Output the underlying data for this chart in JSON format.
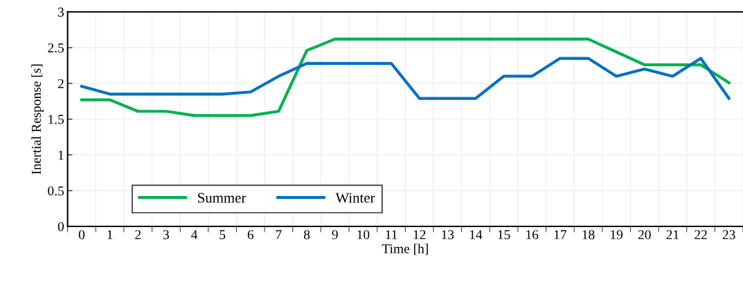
{
  "chart_data": {
    "type": "line",
    "xlabel": "Time [h]",
    "ylabel": "Inertial Response [s]",
    "categories": [
      "0",
      "1",
      "2",
      "3",
      "4",
      "5",
      "6",
      "7",
      "8",
      "9",
      "10",
      "11",
      "12",
      "13",
      "14",
      "15",
      "16",
      "17",
      "18",
      "19",
      "20",
      "21",
      "22",
      "23"
    ],
    "series": [
      {
        "name": "Summer",
        "color": "#00b050",
        "values": [
          1.77,
          1.77,
          1.61,
          1.61,
          1.55,
          1.55,
          1.55,
          1.61,
          2.46,
          2.62,
          2.62,
          2.62,
          2.62,
          2.62,
          2.62,
          2.62,
          2.62,
          2.62,
          2.62,
          2.44,
          2.26,
          2.26,
          2.26,
          2.01
        ]
      },
      {
        "name": "Winter",
        "color": "#0070c0",
        "values": [
          1.96,
          1.85,
          1.85,
          1.85,
          1.85,
          1.85,
          1.88,
          2.1,
          2.28,
          2.28,
          2.28,
          2.28,
          1.79,
          1.79,
          1.79,
          2.1,
          2.1,
          2.35,
          2.35,
          2.1,
          2.2,
          2.1,
          2.35,
          1.79
        ]
      }
    ],
    "ylim": [
      0,
      3
    ],
    "yticks": [
      0,
      0.5,
      1,
      1.5,
      2,
      2.5,
      3
    ],
    "grid": true,
    "legend": "bottom left",
    "marker": "none",
    "line_style": "solid"
  }
}
